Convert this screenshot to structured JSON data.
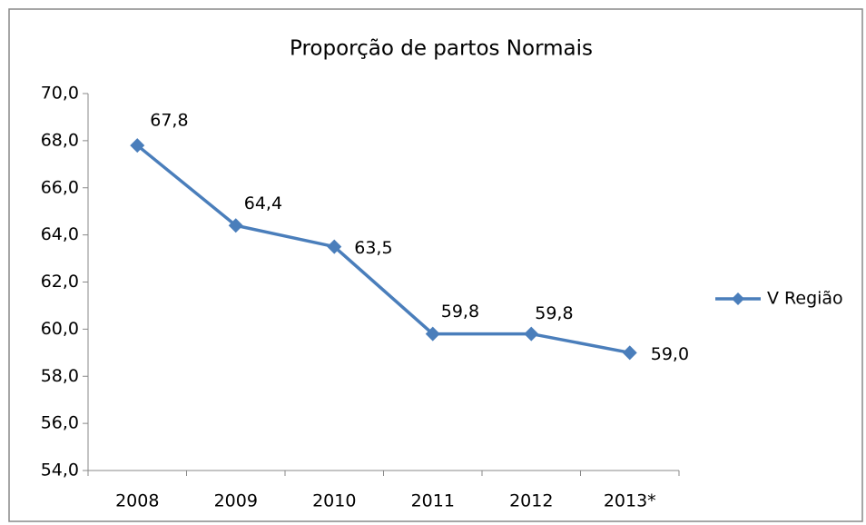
{
  "chart_data": {
    "type": "line",
    "title": "Proporção de partos Normais",
    "categories": [
      "2008",
      "2009",
      "2010",
      "2011",
      "2012",
      "2013*"
    ],
    "series": [
      {
        "name": "V Região",
        "color": "#4a7ebb",
        "values": [
          67.8,
          64.4,
          63.5,
          59.8,
          59.8,
          59.0
        ],
        "value_labels": [
          "67,8",
          "64,4",
          "63,5",
          "59,8",
          "59,8",
          "59,0"
        ]
      }
    ],
    "ylim": [
      54,
      70
    ],
    "yticks": [
      {
        "value": 54,
        "label": "54,0"
      },
      {
        "value": 56,
        "label": "56,0"
      },
      {
        "value": 58,
        "label": "58,0"
      },
      {
        "value": 60,
        "label": "60,0"
      },
      {
        "value": 62,
        "label": "62,0"
      },
      {
        "value": 64,
        "label": "64,0"
      },
      {
        "value": 66,
        "label": "66,0"
      },
      {
        "value": 68,
        "label": "68,0"
      },
      {
        "value": 70,
        "label": "70,0"
      }
    ],
    "legend": "right"
  }
}
